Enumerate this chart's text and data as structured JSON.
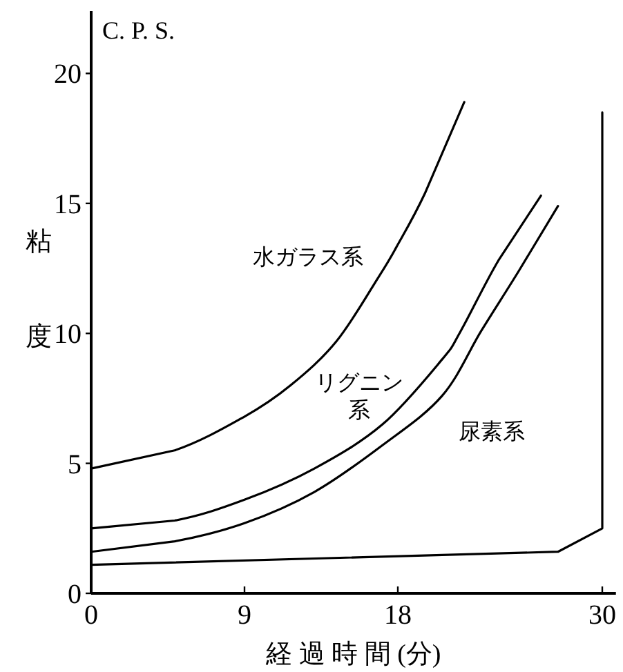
{
  "chart_data": {
    "type": "line",
    "xlabel": "経 過 時 間 (分)",
    "ylabel": "粘度",
    "annotations": [
      "C. P. S."
    ],
    "xlim": [
      0,
      30.8
    ],
    "xticks": [
      0,
      9,
      18,
      30
    ],
    "ylim": [
      0,
      22.4
    ],
    "yticks": [
      0,
      5,
      10,
      15,
      20
    ],
    "grid": false,
    "legend": false,
    "marker": "none",
    "line_style": "solid",
    "series": [
      {
        "name": "水ガラス系",
        "color": "#000000",
        "x": [
          0,
          4.9,
          9.0,
          11.7,
          14.4,
          16.9,
          17.9,
          19.6,
          21.9
        ],
        "values": [
          4.8,
          5.5,
          6.8,
          8.0,
          9.7,
          12.2,
          13.3,
          15.4,
          18.9
        ]
      },
      {
        "name": "リグニン系",
        "color": "#000000",
        "x": [
          0,
          4.9,
          9.0,
          13.1,
          17.1,
          20.6,
          21.7,
          23.9,
          26.4
        ],
        "values": [
          2.5,
          2.8,
          3.6,
          4.8,
          6.5,
          9.0,
          10.1,
          12.8,
          15.3
        ]
      },
      {
        "name": "尿素系",
        "color": "#000000",
        "x": [
          0,
          4.9,
          9.0,
          13.1,
          17.1,
          20.6,
          22.9,
          25.1,
          27.4
        ],
        "values": [
          1.6,
          2.0,
          2.7,
          3.9,
          5.7,
          7.6,
          10.1,
          12.4,
          14.9
        ]
      },
      {
        "color": "#000000",
        "x": [
          0,
          27.4,
          30,
          30
        ],
        "values": [
          1.1,
          1.6,
          2.5,
          18.5
        ]
      }
    ]
  }
}
